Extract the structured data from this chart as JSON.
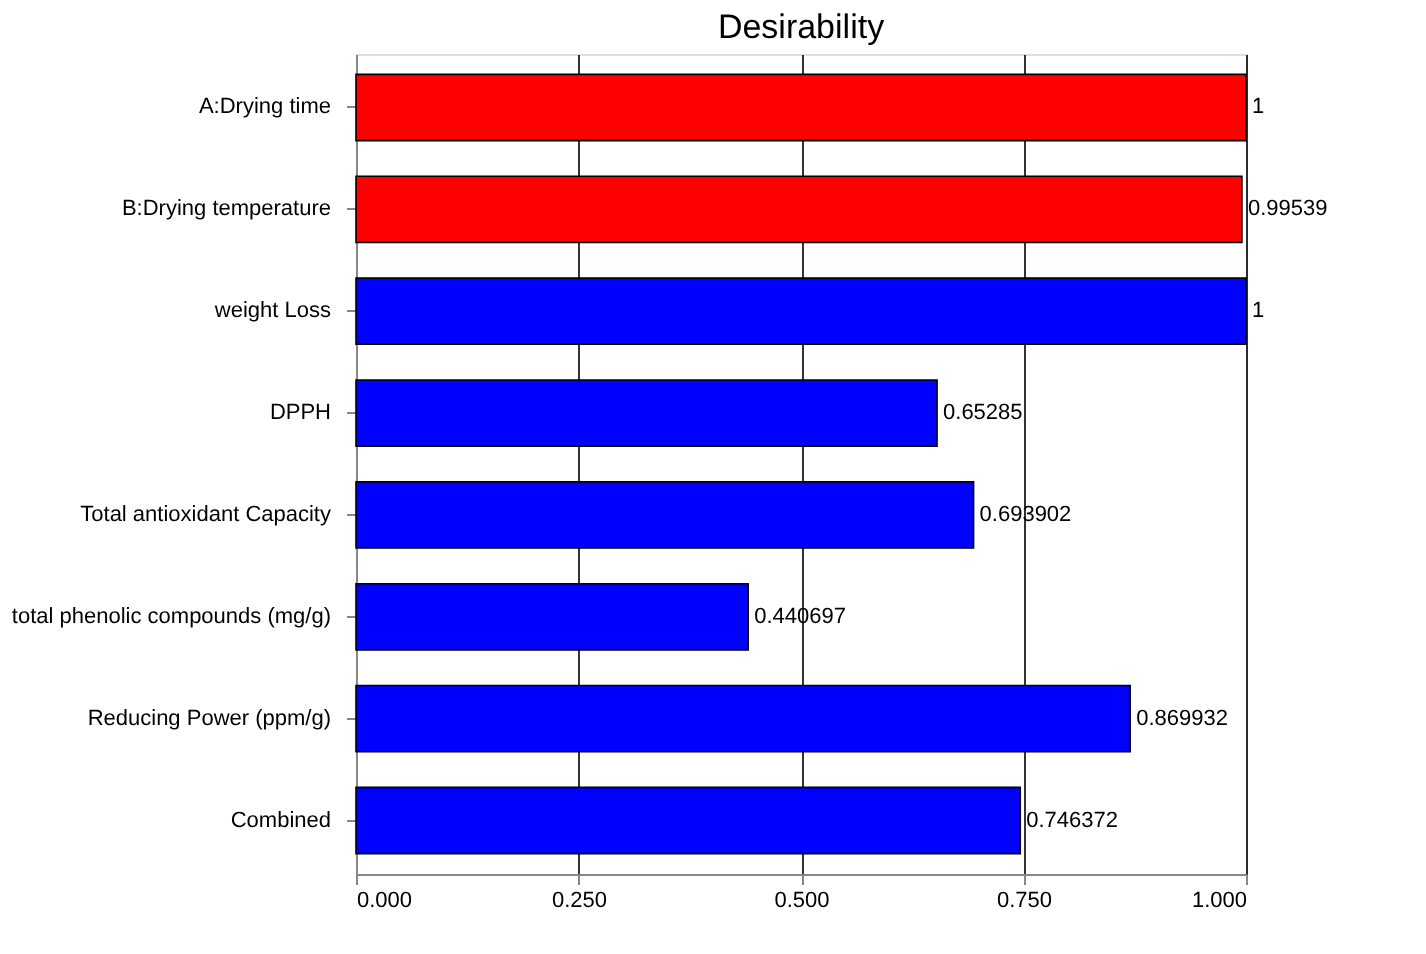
{
  "chart_data": {
    "type": "bar",
    "orientation": "horizontal",
    "title": "Desirability",
    "categories": [
      "A:Drying time",
      "B:Drying temperature",
      "weight Loss",
      "DPPH",
      "Total antioxidant Capacity",
      "total phenolic compounds (mg/g)",
      "Reducing Power (ppm/g)",
      "Combined"
    ],
    "values": [
      1,
      0.99539,
      1,
      0.65285,
      0.693902,
      0.440697,
      0.869932,
      0.746372
    ],
    "colors": [
      "#ff0000",
      "#ff0000",
      "#0000ff",
      "#0000ff",
      "#0000ff",
      "#0000ff",
      "#0000ff",
      "#0000ff"
    ],
    "xlim": [
      0,
      1
    ],
    "xticks": [
      {
        "value": 0,
        "label": "0.000"
      },
      {
        "value": 0.25,
        "label": "0.250"
      },
      {
        "value": 0.5,
        "label": "0.500"
      },
      {
        "value": 0.75,
        "label": "0.750"
      },
      {
        "value": 1,
        "label": "1.000"
      }
    ],
    "grid": "x",
    "data_labels": true
  }
}
